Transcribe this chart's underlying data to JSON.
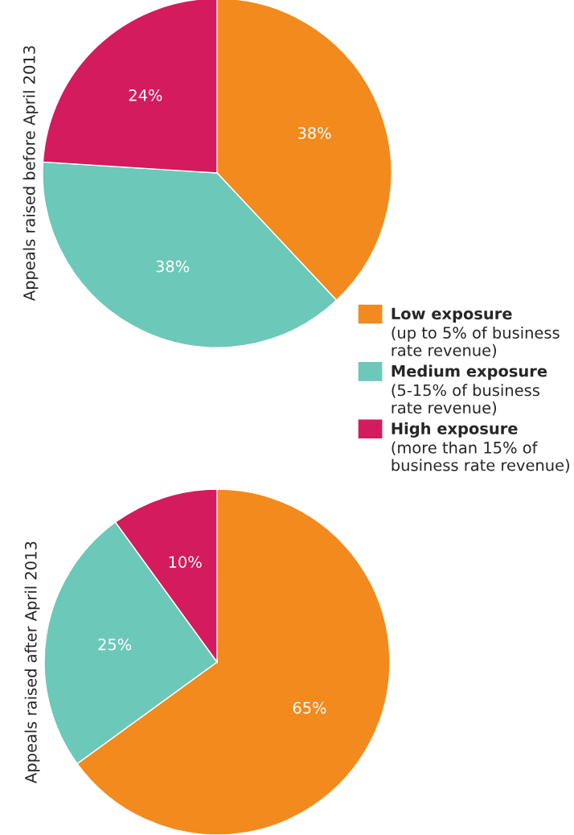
{
  "chart_data": [
    {
      "type": "pie",
      "ylabel": "Appeals raised before April 2013",
      "categories": [
        "Low exposure\n(up to 5% of business\nrate revenue)",
        "Medium exposure\n(5-15% of business\nrate revenue)",
        "High exposure\n(more than 15% of\nbusiness rate revenue)"
      ],
      "values": [
        38,
        38,
        24
      ],
      "value_labels": [
        "38%",
        "38%",
        "24%"
      ],
      "colors": [
        "#f28a1e",
        "#6cc8b8",
        "#d41b5e"
      ],
      "legend": "bottom right"
    },
    {
      "type": "pie",
      "ylabel": "Appeals raised after April 2013",
      "values": [
        65,
        25,
        10
      ],
      "value_labels": [
        "65%",
        "25%",
        "10%"
      ],
      "colors": [
        "#f28a1e",
        "#6cc8b8",
        "#d41b5e"
      ]
    }
  ]
}
